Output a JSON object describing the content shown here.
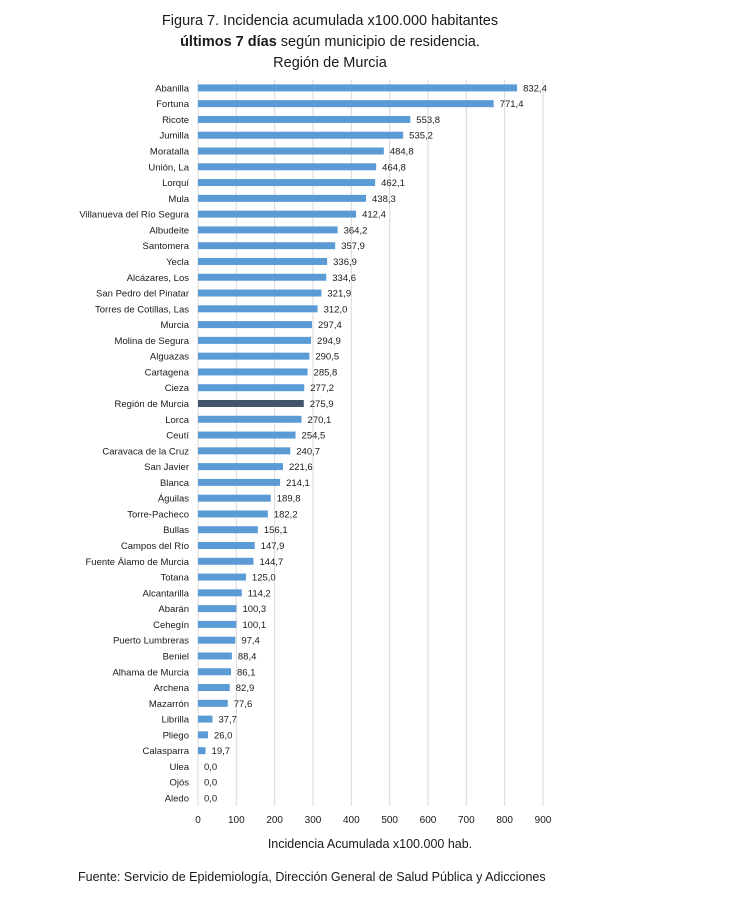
{
  "title": {
    "line1": "Figura 7. Incidencia acumulada x100.000 habitantes",
    "line2_bold": "últimos 7 días",
    "line2_rest": " según municipio de residencia.",
    "line3": "Región de Murcia"
  },
  "source": "Fuente: Servicio de Epidemiología, Dirección General de Salud Pública y Adicciones",
  "chart_data": {
    "type": "bar",
    "orientation": "horizontal",
    "xlabel": "Incidencia Acumulada x100.000 hab.",
    "xlim": [
      0,
      900
    ],
    "xticks": [
      0,
      100,
      200,
      300,
      400,
      500,
      600,
      700,
      800,
      900
    ],
    "grid": true,
    "colors": {
      "bar": "#5b9bd5",
      "highlight": "#44546a"
    },
    "highlight_category": "Región de Murcia",
    "categories": [
      "Abanilla",
      "Fortuna",
      "Ricote",
      "Jumilla",
      "Moratalla",
      "Unión, La",
      "Lorquí",
      "Mula",
      "Villanueva del Río Segura",
      "Albudeite",
      "Santomera",
      "Yecla",
      "Alcázares, Los",
      "San Pedro del Pinatar",
      "Torres de Cotillas, Las",
      "Murcia",
      "Molina de Segura",
      "Alguazas",
      "Cartagena",
      "Cieza",
      "Región de Murcia",
      "Lorca",
      "Ceutí",
      "Caravaca de la Cruz",
      "San Javier",
      "Blanca",
      "Águilas",
      "Torre-Pacheco",
      "Bullas",
      "Campos del Río",
      "Fuente Álamo de Murcia",
      "Totana",
      "Alcantarilla",
      "Abarán",
      "Cehegín",
      "Puerto Lumbreras",
      "Beniel",
      "Alhama de Murcia",
      "Archena",
      "Mazarrón",
      "Librilla",
      "Pliego",
      "Calasparra",
      "Ulea",
      "Ojós",
      "Aledo"
    ],
    "values": [
      832.4,
      771.4,
      553.8,
      535.2,
      484.8,
      464.8,
      462.1,
      438.3,
      412.4,
      364.2,
      357.9,
      336.9,
      334.6,
      321.9,
      312.0,
      297.4,
      294.9,
      290.5,
      285.8,
      277.2,
      275.9,
      270.1,
      254.5,
      240.7,
      221.6,
      214.1,
      189.8,
      182.2,
      156.1,
      147.9,
      144.7,
      125.0,
      114.2,
      100.3,
      100.1,
      97.4,
      88.4,
      86.1,
      82.9,
      77.6,
      37.7,
      26.0,
      19.7,
      0.0,
      0.0,
      0.0
    ],
    "value_labels": [
      "832,4",
      "771,4",
      "553,8",
      "535,2",
      "484,8",
      "464,8",
      "462,1",
      "438,3",
      "412,4",
      "364,2",
      "357,9",
      "336,9",
      "334,6",
      "321,9",
      "312,0",
      "297,4",
      "294,9",
      "290,5",
      "285,8",
      "277,2",
      "275,9",
      "270,1",
      "254,5",
      "240,7",
      "221,6",
      "214,1",
      "189,8",
      "182,2",
      "156,1",
      "147,9",
      "144,7",
      "125,0",
      "114,2",
      "100,3",
      "100,1",
      "97,4",
      "88,4",
      "86,1",
      "82,9",
      "77,6",
      "37,7",
      "26,0",
      "19,7",
      "0,0",
      "0,0",
      "0,0"
    ]
  }
}
